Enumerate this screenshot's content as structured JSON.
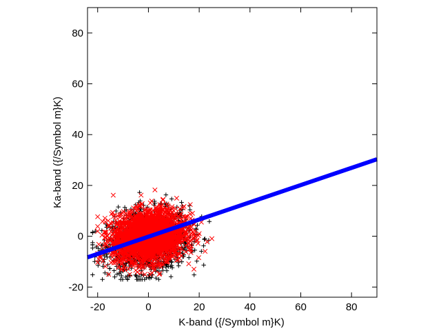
{
  "chart_data": {
    "type": "scatter",
    "title": "",
    "xlabel": "K-band ({/Symbol m}K)",
    "ylabel": "Ka-band ({/Symbol m}K)",
    "xlim": [
      -24,
      90
    ],
    "ylim": [
      -24,
      90
    ],
    "xticks": [
      -20,
      0,
      20,
      40,
      60,
      80
    ],
    "yticks": [
      -20,
      0,
      20,
      40,
      60,
      80
    ],
    "grid": false,
    "legend": "none",
    "series": [
      {
        "marker": "plus",
        "color": "#000000",
        "cloud": {
          "center": [
            0,
            -2
          ],
          "std": [
            8,
            6
          ],
          "n": 1400,
          "xrange": [
            -22,
            24
          ],
          "yrange": [
            -17,
            19
          ]
        }
      },
      {
        "marker": "cross",
        "color": "#ff0000",
        "cloud": {
          "center": [
            0,
            0
          ],
          "std": [
            7,
            5
          ],
          "n": 2600,
          "xrange": [
            -20,
            25
          ],
          "yrange": [
            -15,
            21
          ]
        }
      },
      {
        "marker": "line",
        "color": "#0000ff",
        "x": [
          -24,
          90
        ],
        "y": [
          -8.3,
          30.3
        ]
      }
    ]
  }
}
